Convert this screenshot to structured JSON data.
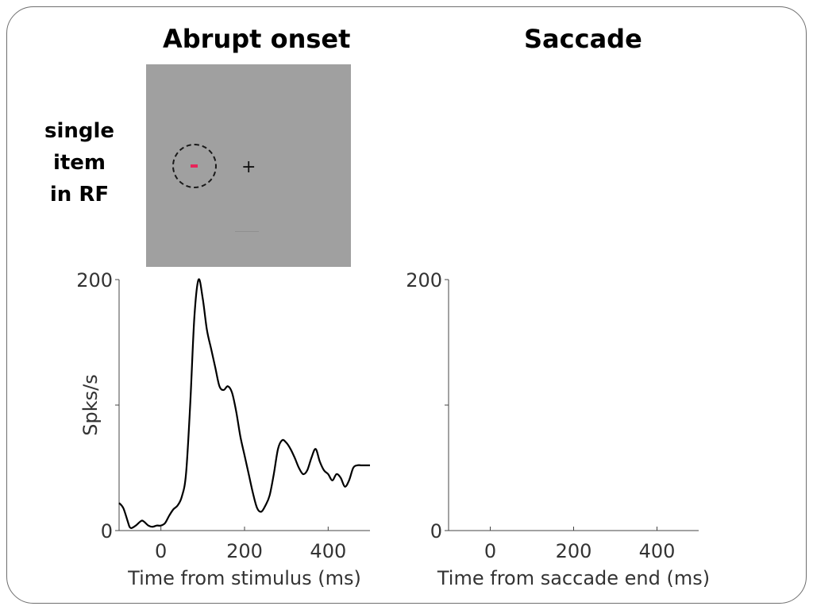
{
  "slide": {
    "title_left": "Abrupt onset",
    "title_right": "Saccade",
    "row_label_lines": [
      "single",
      "item",
      "in RF"
    ],
    "stim_bar_color": "#e8245a",
    "stim_background": "#a0a0a0",
    "fixation_glyph": "+"
  },
  "chart_data": [
    {
      "type": "line",
      "title": "",
      "xlabel": "Time from stimulus (ms)",
      "ylabel": "Spks/s",
      "xlim": [
        -100,
        500
      ],
      "ylim": [
        0,
        200
      ],
      "xticks": [
        0,
        200,
        400
      ],
      "yticks": [
        0,
        200
      ],
      "grid": false,
      "series": [
        {
          "x": [
            -100,
            -90,
            -80,
            -75,
            -70,
            -60,
            -50,
            -45,
            -40,
            -30,
            -20,
            -10,
            0,
            10,
            20,
            30,
            40,
            50,
            60,
            70,
            80,
            90,
            100,
            110,
            120,
            130,
            140,
            150,
            160,
            170,
            180,
            190,
            200,
            210,
            220,
            230,
            240,
            250,
            260,
            270,
            280,
            290,
            300,
            310,
            320,
            330,
            340,
            350,
            360,
            370,
            380,
            390,
            400,
            410,
            420,
            430,
            440,
            450,
            460,
            470,
            480,
            490,
            500
          ],
          "y": [
            22,
            18,
            8,
            3,
            2,
            4,
            7,
            8,
            7,
            4,
            3,
            4,
            4,
            6,
            12,
            17,
            20,
            27,
            45,
            100,
            170,
            200,
            185,
            160,
            145,
            130,
            115,
            112,
            115,
            110,
            95,
            75,
            60,
            45,
            30,
            18,
            15,
            20,
            28,
            45,
            65,
            72,
            70,
            65,
            58,
            50,
            45,
            48,
            58,
            65,
            55,
            48,
            45,
            40,
            45,
            42,
            35,
            40,
            50,
            52,
            52,
            52,
            52
          ]
        }
      ]
    },
    {
      "type": "line",
      "title": "",
      "xlabel": "Time from saccade end (ms)",
      "ylabel": "",
      "xlim": [
        -100,
        500
      ],
      "ylim": [
        0,
        200
      ],
      "xticks": [
        0,
        200,
        400
      ],
      "yticks": [
        0,
        200
      ],
      "grid": false,
      "series": []
    }
  ]
}
